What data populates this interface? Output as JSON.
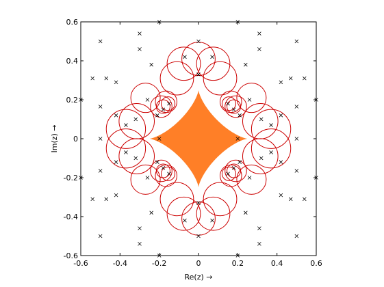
{
  "chart_data": {
    "type": "scatter",
    "xlabel": "Re(z) →",
    "ylabel": "Im(z) →",
    "xlim": [
      -0.6,
      0.6
    ],
    "ylim": [
      -0.6,
      0.6
    ],
    "xticks": [
      -0.6,
      -0.4,
      -0.2,
      0,
      0.2,
      0.4,
      0.6
    ],
    "yticks": [
      -0.6,
      -0.4,
      -0.2,
      0,
      0.2,
      0.4,
      0.6
    ],
    "xtick_labels": [
      "-0.6",
      "-0.4",
      "-0.2",
      "0",
      "0.2",
      "0.4",
      "0.6"
    ],
    "ytick_labels": [
      "-0.6",
      "-0.4",
      "-0.2",
      "0",
      "0.2",
      "0.4",
      "0.6"
    ],
    "grid": false,
    "filled_region": {
      "description": "orange filled rounded-diamond region around the origin",
      "color": "#ff7f27",
      "max_extent": 0.25
    },
    "circles": {
      "color": "#cc0000",
      "items": [
        {
          "cx": 0.0,
          "cy": 0.41,
          "r": 0.085
        },
        {
          "cx": -0.075,
          "cy": 0.385,
          "r": 0.085
        },
        {
          "cx": 0.075,
          "cy": 0.385,
          "r": 0.085
        },
        {
          "cx": -0.11,
          "cy": 0.31,
          "r": 0.085
        },
        {
          "cx": 0.11,
          "cy": 0.31,
          "r": 0.085
        },
        {
          "cx": -0.19,
          "cy": 0.165,
          "r": 0.055
        },
        {
          "cx": 0.19,
          "cy": 0.165,
          "r": 0.055
        },
        {
          "cx": -0.165,
          "cy": 0.19,
          "r": 0.055
        },
        {
          "cx": 0.165,
          "cy": 0.19,
          "r": 0.055
        },
        {
          "cx": -0.18,
          "cy": 0.165,
          "r": 0.035
        },
        {
          "cx": 0.18,
          "cy": 0.165,
          "r": 0.035
        },
        {
          "cx": -0.155,
          "cy": 0.18,
          "r": 0.035
        },
        {
          "cx": 0.155,
          "cy": 0.18,
          "r": 0.035
        },
        {
          "cx": -0.27,
          "cy": 0.21,
          "r": 0.075
        },
        {
          "cx": 0.27,
          "cy": 0.21,
          "r": 0.075
        },
        {
          "cx": -0.315,
          "cy": 0.09,
          "r": 0.09
        },
        {
          "cx": 0.315,
          "cy": 0.09,
          "r": 0.09
        },
        {
          "cx": -0.37,
          "cy": 0.05,
          "r": 0.1
        },
        {
          "cx": 0.37,
          "cy": 0.05,
          "r": 0.1
        },
        {
          "cx": 0.0,
          "cy": -0.41,
          "r": 0.085
        },
        {
          "cx": -0.075,
          "cy": -0.385,
          "r": 0.085
        },
        {
          "cx": 0.075,
          "cy": -0.385,
          "r": 0.085
        },
        {
          "cx": -0.11,
          "cy": -0.31,
          "r": 0.085
        },
        {
          "cx": 0.11,
          "cy": -0.31,
          "r": 0.085
        },
        {
          "cx": -0.19,
          "cy": -0.165,
          "r": 0.055
        },
        {
          "cx": 0.19,
          "cy": -0.165,
          "r": 0.055
        },
        {
          "cx": -0.165,
          "cy": -0.19,
          "r": 0.055
        },
        {
          "cx": 0.165,
          "cy": -0.19,
          "r": 0.055
        },
        {
          "cx": -0.18,
          "cy": -0.165,
          "r": 0.035
        },
        {
          "cx": 0.18,
          "cy": -0.165,
          "r": 0.035
        },
        {
          "cx": -0.155,
          "cy": -0.18,
          "r": 0.035
        },
        {
          "cx": 0.155,
          "cy": -0.18,
          "r": 0.035
        },
        {
          "cx": -0.27,
          "cy": -0.21,
          "r": 0.075
        },
        {
          "cx": 0.27,
          "cy": -0.21,
          "r": 0.075
        },
        {
          "cx": -0.315,
          "cy": -0.09,
          "r": 0.09
        },
        {
          "cx": 0.315,
          "cy": -0.09,
          "r": 0.09
        },
        {
          "cx": -0.37,
          "cy": -0.05,
          "r": 0.1
        },
        {
          "cx": 0.37,
          "cy": -0.05,
          "r": 0.1
        }
      ]
    },
    "series": [
      {
        "marker": "x",
        "color": "#000000",
        "points": [
          [
            -0.5,
            0.5
          ],
          [
            0.5,
            0.5
          ],
          [
            -0.5,
            -0.5
          ],
          [
            0.5,
            -0.5
          ],
          [
            -0.3,
            0.54
          ],
          [
            0.31,
            0.54
          ],
          [
            -0.3,
            -0.54
          ],
          [
            0.31,
            -0.54
          ],
          [
            -0.2,
            0.6
          ],
          [
            0.2,
            0.6
          ],
          [
            -0.2,
            -0.6
          ],
          [
            0.2,
            -0.6
          ],
          [
            -0.3,
            0.46
          ],
          [
            0.31,
            0.46
          ],
          [
            -0.3,
            -0.46
          ],
          [
            0.31,
            -0.46
          ],
          [
            -0.54,
            0.31
          ],
          [
            -0.47,
            0.31
          ],
          [
            0.47,
            0.31
          ],
          [
            0.54,
            0.31
          ],
          [
            -0.54,
            -0.31
          ],
          [
            -0.47,
            -0.31
          ],
          [
            0.47,
            -0.31
          ],
          [
            0.54,
            -0.31
          ],
          [
            -0.6,
            0.2
          ],
          [
            0.6,
            0.2
          ],
          [
            -0.6,
            -0.2
          ],
          [
            0.6,
            -0.2
          ],
          [
            -0.5,
            0.165
          ],
          [
            0.5,
            0.165
          ],
          [
            -0.5,
            -0.165
          ],
          [
            0.5,
            -0.165
          ],
          [
            -0.42,
            0.29
          ],
          [
            0.42,
            0.29
          ],
          [
            -0.42,
            -0.29
          ],
          [
            0.42,
            -0.29
          ],
          [
            -0.37,
            0.07
          ],
          [
            0.37,
            0.07
          ],
          [
            -0.37,
            -0.07
          ],
          [
            0.37,
            -0.07
          ],
          [
            -0.5,
            0.0
          ],
          [
            0.5,
            0.0
          ],
          [
            -0.2,
            0.0
          ],
          [
            0.2,
            0.0
          ],
          [
            0.0,
            0.5
          ],
          [
            0.0,
            -0.5
          ],
          [
            0.0,
            0.33
          ],
          [
            0.0,
            -0.33
          ],
          [
            -0.24,
            0.38
          ],
          [
            0.24,
            0.38
          ],
          [
            -0.24,
            -0.38
          ],
          [
            0.24,
            -0.38
          ],
          [
            -0.07,
            0.42
          ],
          [
            0.07,
            0.42
          ],
          [
            -0.07,
            -0.42
          ],
          [
            0.07,
            -0.42
          ],
          [
            -0.26,
            0.2
          ],
          [
            0.26,
            0.2
          ],
          [
            -0.26,
            -0.2
          ],
          [
            0.26,
            -0.2
          ],
          [
            -0.18,
            0.15
          ],
          [
            0.18,
            0.15
          ],
          [
            -0.18,
            -0.15
          ],
          [
            0.18,
            -0.15
          ],
          [
            -0.15,
            0.18
          ],
          [
            0.15,
            0.18
          ],
          [
            -0.15,
            -0.18
          ],
          [
            0.15,
            -0.18
          ],
          [
            -0.21,
            0.12
          ],
          [
            0.21,
            0.12
          ],
          [
            -0.21,
            -0.12
          ],
          [
            0.21,
            -0.12
          ],
          [
            -0.32,
            0.1
          ],
          [
            0.32,
            0.1
          ],
          [
            -0.32,
            -0.1
          ],
          [
            0.32,
            -0.1
          ],
          [
            -0.42,
            0.12
          ],
          [
            0.42,
            0.12
          ],
          [
            -0.42,
            -0.12
          ],
          [
            0.42,
            -0.12
          ]
        ]
      }
    ]
  }
}
